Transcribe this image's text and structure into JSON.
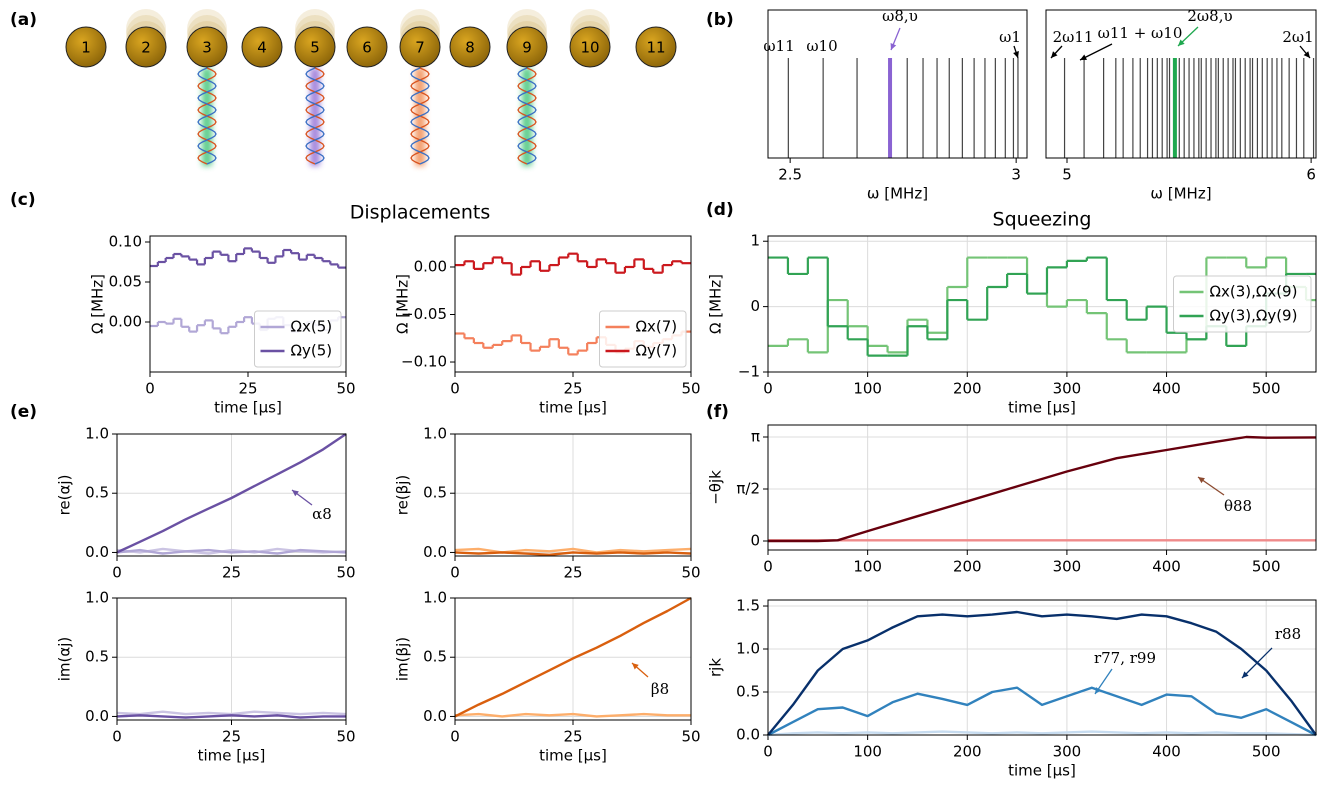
{
  "panel_labels": [
    "(a)",
    "(b)",
    "(c)",
    "(d)",
    "(e)",
    "(f)"
  ],
  "titles": {
    "displacements": "Displacements",
    "squeezing": "Squeezing"
  },
  "ions": {
    "labels": [
      1,
      2,
      3,
      4,
      5,
      6,
      7,
      8,
      9,
      10,
      11
    ]
  },
  "chart_data": [
    {
      "type": "spectrum",
      "xlabel": "ω [MHz]",
      "xlim": [
        2.451,
        3.024
      ],
      "xticks": [
        2.5,
        3
      ],
      "values": [
        2.496,
        2.573,
        2.648,
        2.721,
        2.759,
        2.794,
        2.825,
        2.852,
        2.881,
        2.907,
        2.931,
        2.954,
        2.976,
        2.994,
        3.004
      ],
      "color": "#444444",
      "highlight_index": 3,
      "highlight_color": "#8a63d2",
      "annotations": [
        "ω11",
        "ω10",
        "ω8,υ",
        "ω1"
      ]
    },
    {
      "type": "spectrum",
      "xlabel": "ω [MHz]",
      "xlim": [
        4.914,
        6.02
      ],
      "xticks": [
        5,
        6
      ],
      "values": [
        4.99,
        5.07,
        5.15,
        5.2,
        5.23,
        5.27,
        5.3,
        5.33,
        5.35,
        5.37,
        5.39,
        5.41,
        5.42,
        5.442,
        5.46,
        5.48,
        5.5,
        5.52,
        5.54,
        5.55,
        5.57,
        5.59,
        5.61,
        5.62,
        5.64,
        5.66,
        5.68,
        5.69,
        5.71,
        5.73,
        5.75,
        5.76,
        5.78,
        5.8,
        5.82,
        5.84,
        5.86,
        5.88,
        5.91,
        5.94,
        5.97,
        6.01
      ],
      "color": "#444444",
      "highlight_index": 13,
      "highlight_color": "#1fa84f",
      "annotations": [
        "2ω11",
        "ω11 + ω10",
        "2ω8,υ",
        "2ω1"
      ]
    },
    {
      "type": "step",
      "xlabel": "time [μs]",
      "ylabel": "Ω [MHz]",
      "xlim": [
        0,
        50
      ],
      "ylim": [
        -0.0625,
        0.1075
      ],
      "xticks": [
        0,
        25,
        50
      ],
      "yticks": [
        {
          "value": 0,
          "label": "0.00"
        },
        0.05,
        {
          "value": 0.1,
          "label": "0.10"
        }
      ],
      "grid": false,
      "legend": "lower right",
      "x": [
        0,
        2,
        4,
        6,
        8,
        10,
        12,
        14,
        16,
        18,
        20,
        22,
        24,
        26,
        28,
        30,
        32,
        34,
        36,
        38,
        40,
        42,
        44,
        46,
        48
      ],
      "series": [
        {
          "name": "Ωx(5)",
          "color": "#b1a7d6",
          "values": [
            -0.005,
            0,
            -0.002,
            0.004,
            -0.006,
            -0.012,
            -0.004,
            0.002,
            -0.008,
            -0.014,
            -0.006,
            0,
            0.006,
            -0.002,
            -0.01,
            0.004,
            0.006,
            -0.004,
            -0.012,
            -0.008,
            0,
            -0.004,
            -0.01,
            0.002,
            0.006
          ]
        },
        {
          "name": "Ωy(5)",
          "color": "#6a51a3",
          "values": [
            0.07,
            0.075,
            0.08,
            0.085,
            0.082,
            0.078,
            0.072,
            0.08,
            0.088,
            0.084,
            0.076,
            0.085,
            0.092,
            0.088,
            0.08,
            0.074,
            0.082,
            0.09,
            0.086,
            0.078,
            0.084,
            0.08,
            0.076,
            0.072,
            0.068
          ]
        }
      ]
    },
    {
      "type": "step",
      "xlabel": "time [μs]",
      "ylabel": "Ω [MHz]",
      "xlim": [
        0,
        50
      ],
      "ylim": [
        -0.1105,
        0.0326
      ],
      "xticks": [
        0,
        25,
        50
      ],
      "yticks": [
        {
          "value": -0.1,
          "label": "−0.10"
        },
        {
          "value": -0.05,
          "label": "−0.05"
        },
        {
          "value": 0,
          "label": "0.00"
        }
      ],
      "grid": false,
      "legend": "lower right",
      "x": [
        0,
        2,
        4,
        6,
        8,
        10,
        12,
        14,
        16,
        18,
        20,
        22,
        24,
        26,
        28,
        30,
        32,
        34,
        36,
        38,
        40,
        42,
        44,
        46,
        48
      ],
      "series": [
        {
          "name": "Ωx(7)",
          "color": "#f4805c",
          "values": [
            -0.07,
            -0.075,
            -0.08,
            -0.085,
            -0.082,
            -0.078,
            -0.072,
            -0.08,
            -0.088,
            -0.084,
            -0.076,
            -0.085,
            -0.092,
            -0.088,
            -0.08,
            -0.074,
            -0.082,
            -0.09,
            -0.086,
            -0.078,
            -0.084,
            -0.08,
            -0.076,
            -0.072,
            -0.068
          ]
        },
        {
          "name": "Ωy(7)",
          "color": "#cb181d",
          "values": [
            0.002,
            0.006,
            -0.002,
            0.004,
            0.01,
            0.004,
            -0.008,
            0,
            0.006,
            -0.004,
            0.002,
            0.01,
            0.014,
            0.006,
            0,
            0.008,
            0.004,
            -0.006,
            0,
            0.008,
            -0.002,
            -0.006,
            0.002,
            0.006,
            0.004
          ]
        }
      ]
    },
    {
      "type": "step",
      "xlabel": "time [μs]",
      "ylabel": "Ω [MHz]",
      "xlim": [
        0,
        550
      ],
      "ylim": [
        -1,
        1.08
      ],
      "xticks": [
        0,
        100,
        200,
        300,
        400,
        500
      ],
      "yticks": [
        {
          "value": -1,
          "label": "−1"
        },
        0,
        1
      ],
      "grid": true,
      "legend": "center right",
      "x": [
        0,
        20,
        40,
        60,
        80,
        100,
        120,
        140,
        160,
        180,
        200,
        220,
        240,
        260,
        280,
        300,
        320,
        340,
        360,
        380,
        400,
        420,
        440,
        460,
        480,
        500,
        520,
        540
      ],
      "series": [
        {
          "name": "Ωx(3),Ωx(9)",
          "color": "#74c476",
          "values": [
            -0.6,
            -0.5,
            -0.7,
            0.1,
            -0.3,
            -0.6,
            -0.7,
            -0.2,
            -0.4,
            0.3,
            0.75,
            0.75,
            0.75,
            0.2,
            0,
            0.1,
            -0.1,
            -0.5,
            -0.7,
            -0.7,
            -0.7,
            -0.5,
            0.75,
            0.75,
            0.6,
            0.75,
            0.3,
            0.1
          ]
        },
        {
          "name": "Ωy(3),Ωy(9)",
          "color": "#31a354",
          "values": [
            0.75,
            0.5,
            0.75,
            -0.3,
            -0.5,
            -0.75,
            -0.75,
            -0.3,
            -0.5,
            0.1,
            -0.2,
            0.3,
            0.5,
            0.2,
            0.6,
            0.7,
            0.75,
            0.1,
            -0.2,
            0,
            -0.4,
            -0.5,
            -0.3,
            -0.6,
            -0.3,
            0.2,
            0.5,
            0.5
          ]
        }
      ]
    },
    {
      "type": "line",
      "ylabel": "re(αj)",
      "xlim": [
        0,
        50
      ],
      "ylim": [
        -0.03,
        1
      ],
      "xticks": [
        0,
        25,
        50
      ],
      "yticks": [
        {
          "value": 0,
          "label": "0.0"
        },
        0.5,
        {
          "value": 1,
          "label": "1.0"
        }
      ],
      "grid": true,
      "annotations": [
        "α8"
      ],
      "x": [
        0,
        5,
        10,
        15,
        20,
        25,
        30,
        35,
        40,
        45,
        50
      ],
      "series": [
        {
          "color": "#cbc4e3",
          "values": [
            0.02,
            0,
            0.03,
            0.01,
            -0.01,
            0.02,
            0,
            0.03,
            0.01,
            0,
            0.01
          ]
        },
        {
          "color": "#b1a7d6",
          "values": [
            0,
            0.02,
            -0.01,
            0.01,
            0.02,
            0,
            0.01,
            -0.01,
            0.02,
            0.01,
            0
          ]
        },
        {
          "color": "#6a51a3",
          "values": [
            0,
            0.09,
            0.18,
            0.28,
            0.37,
            0.46,
            0.56,
            0.66,
            0.76,
            0.87,
            1
          ]
        }
      ]
    },
    {
      "type": "line",
      "ylabel": "re(βj)",
      "xlim": [
        0,
        50
      ],
      "ylim": [
        -0.03,
        1
      ],
      "xticks": [
        0,
        25,
        50
      ],
      "yticks": [
        {
          "value": 0,
          "label": "0.0"
        },
        0.5,
        {
          "value": 1,
          "label": "1.0"
        }
      ],
      "grid": true,
      "x": [
        0,
        5,
        10,
        15,
        20,
        25,
        30,
        35,
        40,
        45,
        50
      ],
      "series": [
        {
          "color": "#fdae6b",
          "values": [
            0.02,
            0.03,
            0,
            0.02,
            0.01,
            0.03,
            0,
            0.02,
            0.01,
            0.02,
            0.03
          ]
        },
        {
          "color": "#d95f0e",
          "values": [
            0,
            -0.01,
            0,
            -0.01,
            -0.02,
            0,
            -0.01,
            0,
            -0.01,
            0,
            -0.01
          ]
        }
      ]
    },
    {
      "type": "line",
      "ylabel": "im(αj)",
      "xlabel": "time [μs]",
      "xlim": [
        0,
        50
      ],
      "ylim": [
        -0.03,
        1
      ],
      "xticks": [
        0,
        25,
        50
      ],
      "yticks": [
        {
          "value": 0,
          "label": "0.0"
        },
        0.5,
        {
          "value": 1,
          "label": "1.0"
        }
      ],
      "grid": true,
      "x": [
        0,
        5,
        10,
        15,
        20,
        25,
        30,
        35,
        40,
        45,
        50
      ],
      "series": [
        {
          "color": "#cbc4e3",
          "values": [
            0.03,
            0.02,
            0.04,
            0.02,
            0.03,
            0.02,
            0.04,
            0.03,
            0.02,
            0.03,
            0.02
          ]
        },
        {
          "color": "#6a51a3",
          "values": [
            0,
            0.01,
            0,
            -0.01,
            0,
            0.01,
            0,
            0.01,
            -0.01,
            0,
            0
          ]
        }
      ]
    },
    {
      "type": "line",
      "ylabel": "im(βj)",
      "xlabel": "time [μs]",
      "xlim": [
        0,
        50
      ],
      "ylim": [
        -0.03,
        1
      ],
      "xticks": [
        0,
        25,
        50
      ],
      "yticks": [
        {
          "value": 0,
          "label": "0.0"
        },
        0.5,
        {
          "value": 1,
          "label": "1.0"
        }
      ],
      "grid": true,
      "annotations": [
        "β8"
      ],
      "x": [
        0,
        5,
        10,
        15,
        20,
        25,
        30,
        35,
        40,
        45,
        50
      ],
      "series": [
        {
          "color": "#fdae6b",
          "values": [
            0.01,
            0.02,
            0,
            0.02,
            0.01,
            0.02,
            0,
            0.01,
            0.02,
            0.01,
            0.01
          ]
        },
        {
          "color": "#d95f0e",
          "values": [
            0,
            0.1,
            0.19,
            0.29,
            0.39,
            0.49,
            0.58,
            0.68,
            0.79,
            0.89,
            1
          ]
        }
      ]
    },
    {
      "type": "line",
      "ylabel": "−θjk",
      "xlim": [
        0,
        550
      ],
      "ylim": [
        -0.272,
        3.504
      ],
      "xticks": [
        0,
        100,
        200,
        300,
        400,
        500
      ],
      "yticks": [
        0,
        {
          "value": 1.5708,
          "label": "π/2"
        },
        {
          "value": 3.1416,
          "label": "π"
        }
      ],
      "grid": true,
      "annotations": [
        "θ88"
      ],
      "x": [
        0,
        50,
        70,
        100,
        150,
        200,
        250,
        300,
        350,
        400,
        450,
        480,
        500,
        550
      ],
      "series": [
        {
          "color": "#ef8a8a",
          "values": [
            0.02,
            0.02,
            0.02,
            0.02,
            0.02,
            0.02,
            0.02,
            0.02,
            0.02,
            0.02,
            0.02,
            0.02,
            0.02,
            0.02
          ]
        },
        {
          "color": "#67000d",
          "values": [
            0,
            0,
            0.02,
            0.3,
            0.75,
            1.2,
            1.65,
            2.1,
            2.5,
            2.75,
            3,
            3.14,
            3.12,
            3.13
          ]
        }
      ]
    },
    {
      "type": "line",
      "ylabel": "rjk",
      "xlabel": "time [μs]",
      "xlim": [
        0,
        550
      ],
      "ylim": [
        0,
        1.57
      ],
      "xticks": [
        0,
        100,
        200,
        300,
        400,
        500
      ],
      "yticks": [
        {
          "value": 0,
          "label": "0.0"
        },
        0.5,
        {
          "value": 1,
          "label": "1.0"
        },
        1.5
      ],
      "grid": true,
      "annotations": [
        "r88",
        "r77, r99"
      ],
      "x": [
        0,
        25,
        50,
        75,
        100,
        125,
        150,
        175,
        200,
        225,
        250,
        275,
        300,
        325,
        350,
        375,
        400,
        425,
        450,
        475,
        500,
        525,
        550
      ],
      "series": [
        {
          "color": "#c6dbef",
          "values": [
            0,
            0.02,
            0.03,
            0.02,
            0.03,
            0.02,
            0.03,
            0.04,
            0.03,
            0.02,
            0.03,
            0.02,
            0.03,
            0.04,
            0.03,
            0.02,
            0.03,
            0.02,
            0.03,
            0.02,
            0.02,
            0.01,
            0
          ]
        },
        {
          "color": "#3182bd",
          "values": [
            0,
            0.15,
            0.3,
            0.32,
            0.22,
            0.38,
            0.48,
            0.42,
            0.35,
            0.5,
            0.55,
            0.35,
            0.45,
            0.55,
            0.45,
            0.35,
            0.47,
            0.45,
            0.25,
            0.2,
            0.3,
            0.15,
            0
          ]
        },
        {
          "color": "#08306b",
          "values": [
            0,
            0.35,
            0.75,
            1,
            1.1,
            1.25,
            1.38,
            1.4,
            1.38,
            1.4,
            1.43,
            1.38,
            1.4,
            1.38,
            1.35,
            1.4,
            1.38,
            1.3,
            1.2,
            1,
            0.75,
            0.4,
            0
          ]
        }
      ]
    }
  ]
}
